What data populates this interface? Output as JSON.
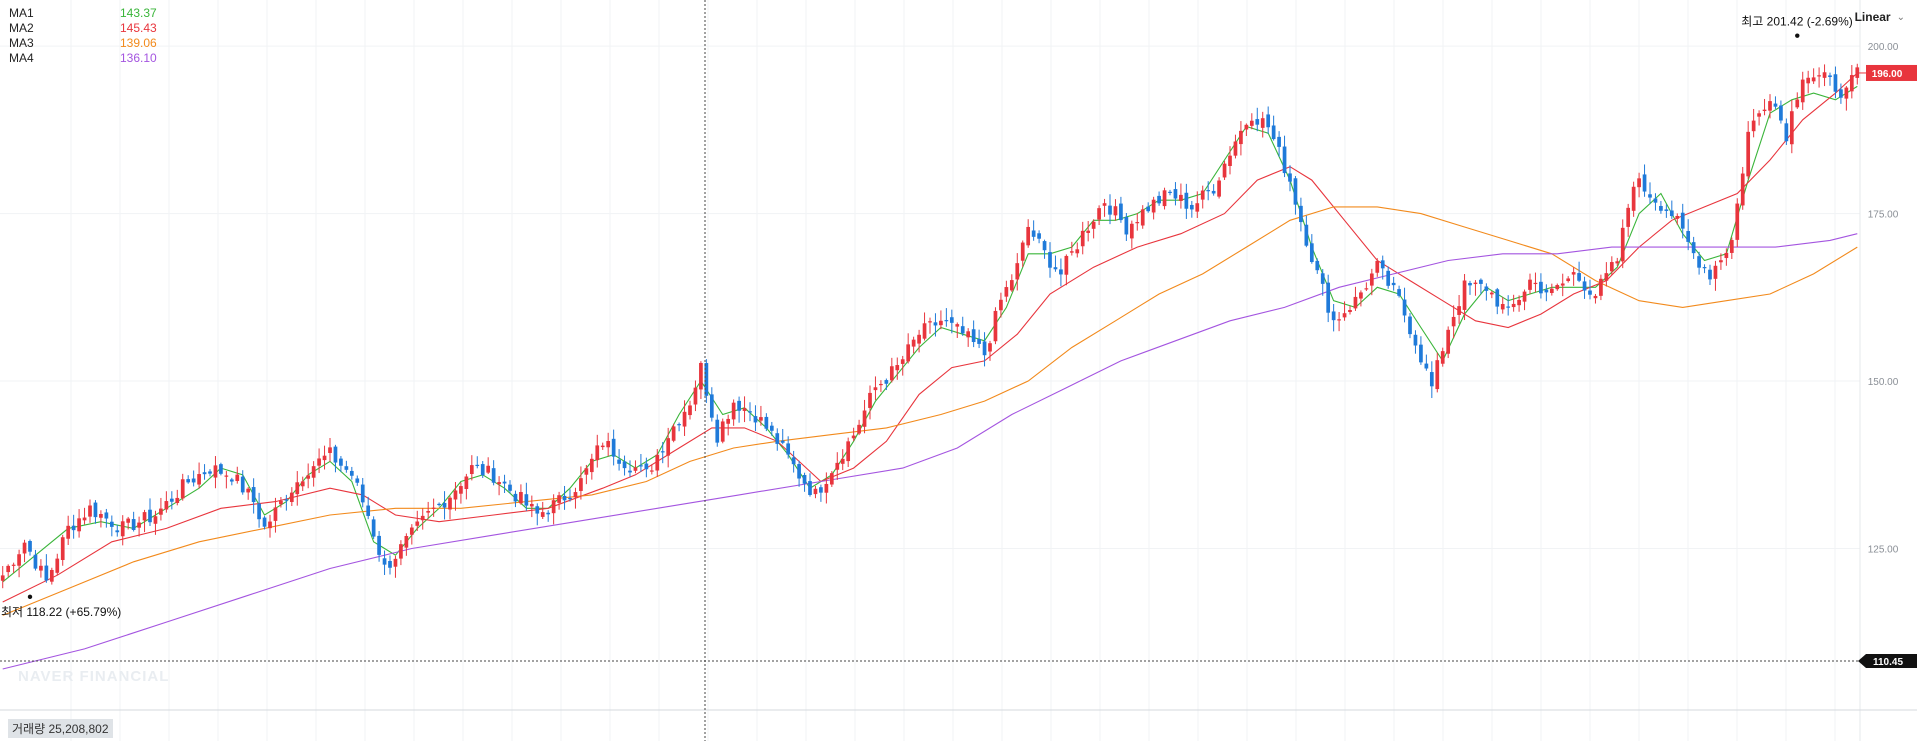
{
  "scale_mode": "Linear",
  "watermark": "NAVER FINANCIAL",
  "ma_legend": [
    {
      "name": "MA1",
      "value": "143.37",
      "color": "#3ab53a"
    },
    {
      "name": "MA2",
      "value": "145.43",
      "color": "#e8353d"
    },
    {
      "name": "MA3",
      "value": "139.06",
      "color": "#f28a1c"
    },
    {
      "name": "MA4",
      "value": "136.10",
      "color": "#a455e0"
    }
  ],
  "annotations": {
    "high_label": "최고 201.42 (-2.69%)",
    "low_label": "최저 118.22 (+65.79%)"
  },
  "current_price_label": "196.00",
  "crosshair_price_label": "110.45",
  "volume_text": "거래량 25,208,802",
  "colors": {
    "up": "#e8353d",
    "down": "#1f7ad9",
    "current_badge": "#e8353d",
    "crosshair_badge": "#111111"
  },
  "chart_data": {
    "type": "candlestick",
    "ylim": [
      107,
      206
    ],
    "y_ticks": [
      "200.00",
      "175.00",
      "150.00",
      "125.00"
    ],
    "grid": true,
    "high": 201.42,
    "low": 118.22,
    "close_anchors": [
      [
        0,
        121
      ],
      [
        4,
        126
      ],
      [
        8,
        120
      ],
      [
        12,
        128
      ],
      [
        16,
        131
      ],
      [
        22,
        128
      ],
      [
        28,
        130
      ],
      [
        34,
        135
      ],
      [
        38,
        137
      ],
      [
        42,
        136
      ],
      [
        46,
        132
      ],
      [
        48,
        128
      ],
      [
        52,
        133
      ],
      [
        56,
        137
      ],
      [
        60,
        139
      ],
      [
        64,
        136
      ],
      [
        67,
        130
      ],
      [
        70,
        122
      ],
      [
        74,
        126
      ],
      [
        78,
        130
      ],
      [
        82,
        133
      ],
      [
        86,
        137
      ],
      [
        90,
        136
      ],
      [
        94,
        133
      ],
      [
        98,
        130
      ],
      [
        102,
        132
      ],
      [
        106,
        135
      ],
      [
        110,
        141
      ],
      [
        114,
        138
      ],
      [
        118,
        136
      ],
      [
        122,
        142
      ],
      [
        126,
        147
      ],
      [
        128,
        152
      ],
      [
        131,
        142
      ],
      [
        134,
        147
      ],
      [
        138,
        145
      ],
      [
        142,
        141
      ],
      [
        146,
        136
      ],
      [
        149,
        133
      ],
      [
        152,
        137
      ],
      [
        156,
        142
      ],
      [
        160,
        149
      ],
      [
        164,
        152
      ],
      [
        168,
        157
      ],
      [
        172,
        159
      ],
      [
        176,
        157
      ],
      [
        180,
        154
      ],
      [
        183,
        162
      ],
      [
        186,
        167
      ],
      [
        188,
        173
      ],
      [
        191,
        169
      ],
      [
        194,
        166
      ],
      [
        198,
        172
      ],
      [
        202,
        177
      ],
      [
        206,
        173
      ],
      [
        210,
        176
      ],
      [
        214,
        178
      ],
      [
        218,
        176
      ],
      [
        222,
        179
      ],
      [
        226,
        186
      ],
      [
        229,
        190
      ],
      [
        232,
        188
      ],
      [
        236,
        180
      ],
      [
        238,
        174
      ],
      [
        241,
        166
      ],
      [
        244,
        159
      ],
      [
        248,
        162
      ],
      [
        252,
        167
      ],
      [
        256,
        162
      ],
      [
        259,
        156
      ],
      [
        262,
        149
      ],
      [
        265,
        158
      ],
      [
        268,
        164
      ],
      [
        272,
        164
      ],
      [
        276,
        160
      ],
      [
        280,
        165
      ],
      [
        284,
        163
      ],
      [
        288,
        166
      ],
      [
        292,
        163
      ],
      [
        296,
        168
      ],
      [
        299,
        180
      ],
      [
        302,
        178
      ],
      [
        306,
        175
      ],
      [
        310,
        169
      ],
      [
        313,
        166
      ],
      [
        317,
        171
      ],
      [
        320,
        187
      ],
      [
        324,
        193
      ],
      [
        327,
        187
      ],
      [
        330,
        196
      ],
      [
        334,
        195
      ],
      [
        338,
        193
      ],
      [
        340,
        196
      ]
    ],
    "moving_averages": [
      {
        "name": "MA1",
        "color": "#3ab53a",
        "width": 1.1,
        "points": [
          [
            0,
            120
          ],
          [
            6,
            124
          ],
          [
            12,
            128
          ],
          [
            18,
            129
          ],
          [
            24,
            128
          ],
          [
            30,
            131
          ],
          [
            36,
            134
          ],
          [
            40,
            137
          ],
          [
            44,
            136
          ],
          [
            48,
            130
          ],
          [
            52,
            132
          ],
          [
            56,
            136
          ],
          [
            60,
            138
          ],
          [
            64,
            135
          ],
          [
            68,
            126
          ],
          [
            72,
            124
          ],
          [
            76,
            128
          ],
          [
            80,
            131
          ],
          [
            84,
            135
          ],
          [
            88,
            136
          ],
          [
            92,
            134
          ],
          [
            96,
            131
          ],
          [
            100,
            131
          ],
          [
            104,
            134
          ],
          [
            108,
            138
          ],
          [
            112,
            139
          ],
          [
            116,
            137
          ],
          [
            120,
            139
          ],
          [
            124,
            145
          ],
          [
            128,
            150
          ],
          [
            132,
            145
          ],
          [
            136,
            146
          ],
          [
            140,
            143
          ],
          [
            144,
            139
          ],
          [
            148,
            134
          ],
          [
            152,
            136
          ],
          [
            156,
            141
          ],
          [
            160,
            147
          ],
          [
            164,
            151
          ],
          [
            168,
            155
          ],
          [
            172,
            158
          ],
          [
            176,
            157
          ],
          [
            180,
            156
          ],
          [
            184,
            161
          ],
          [
            188,
            169
          ],
          [
            192,
            169
          ],
          [
            196,
            170
          ],
          [
            200,
            174
          ],
          [
            204,
            174
          ],
          [
            208,
            175
          ],
          [
            212,
            177
          ],
          [
            216,
            177
          ],
          [
            220,
            178
          ],
          [
            224,
            183
          ],
          [
            228,
            188
          ],
          [
            232,
            187
          ],
          [
            236,
            180
          ],
          [
            240,
            170
          ],
          [
            244,
            162
          ],
          [
            248,
            161
          ],
          [
            252,
            164
          ],
          [
            256,
            163
          ],
          [
            260,
            158
          ],
          [
            264,
            153
          ],
          [
            268,
            160
          ],
          [
            272,
            164
          ],
          [
            276,
            162
          ],
          [
            280,
            163
          ],
          [
            284,
            164
          ],
          [
            288,
            164
          ],
          [
            292,
            164
          ],
          [
            296,
            167
          ],
          [
            300,
            175
          ],
          [
            304,
            178
          ],
          [
            308,
            172
          ],
          [
            312,
            168
          ],
          [
            316,
            169
          ],
          [
            320,
            180
          ],
          [
            324,
            190
          ],
          [
            328,
            192
          ],
          [
            332,
            193
          ],
          [
            336,
            192
          ],
          [
            340,
            194
          ]
        ]
      },
      {
        "name": "MA2",
        "color": "#e8353d",
        "width": 1.1,
        "points": [
          [
            0,
            117
          ],
          [
            10,
            121
          ],
          [
            20,
            126
          ],
          [
            30,
            128
          ],
          [
            40,
            131
          ],
          [
            50,
            132
          ],
          [
            60,
            134
          ],
          [
            66,
            133
          ],
          [
            72,
            130
          ],
          [
            80,
            129
          ],
          [
            90,
            130
          ],
          [
            100,
            131
          ],
          [
            110,
            134
          ],
          [
            116,
            136
          ],
          [
            124,
            140
          ],
          [
            130,
            143
          ],
          [
            136,
            143
          ],
          [
            142,
            141
          ],
          [
            146,
            138
          ],
          [
            150,
            135
          ],
          [
            156,
            137
          ],
          [
            162,
            141
          ],
          [
            168,
            148
          ],
          [
            174,
            152
          ],
          [
            180,
            153
          ],
          [
            186,
            157
          ],
          [
            192,
            163
          ],
          [
            200,
            167
          ],
          [
            208,
            170
          ],
          [
            216,
            172
          ],
          [
            224,
            175
          ],
          [
            230,
            180
          ],
          [
            236,
            182
          ],
          [
            240,
            180
          ],
          [
            246,
            174
          ],
          [
            252,
            168
          ],
          [
            258,
            165
          ],
          [
            264,
            162
          ],
          [
            270,
            159
          ],
          [
            276,
            158
          ],
          [
            282,
            160
          ],
          [
            288,
            163
          ],
          [
            294,
            165
          ],
          [
            300,
            170
          ],
          [
            306,
            174
          ],
          [
            312,
            176
          ],
          [
            318,
            178
          ],
          [
            324,
            183
          ],
          [
            330,
            189
          ],
          [
            336,
            193
          ],
          [
            340,
            196
          ]
        ]
      },
      {
        "name": "MA3",
        "color": "#f28a1c",
        "width": 1.1,
        "points": [
          [
            0,
            115
          ],
          [
            12,
            119
          ],
          [
            24,
            123
          ],
          [
            36,
            126
          ],
          [
            48,
            128
          ],
          [
            60,
            130
          ],
          [
            72,
            131
          ],
          [
            84,
            131
          ],
          [
            96,
            132
          ],
          [
            108,
            133
          ],
          [
            118,
            135
          ],
          [
            126,
            138
          ],
          [
            134,
            140
          ],
          [
            142,
            141
          ],
          [
            152,
            142
          ],
          [
            162,
            143
          ],
          [
            172,
            145
          ],
          [
            180,
            147
          ],
          [
            188,
            150
          ],
          [
            196,
            155
          ],
          [
            204,
            159
          ],
          [
            212,
            163
          ],
          [
            220,
            166
          ],
          [
            228,
            170
          ],
          [
            236,
            174
          ],
          [
            244,
            176
          ],
          [
            252,
            176
          ],
          [
            260,
            175
          ],
          [
            268,
            173
          ],
          [
            276,
            171
          ],
          [
            284,
            169
          ],
          [
            292,
            165
          ],
          [
            300,
            162
          ],
          [
            308,
            161
          ],
          [
            316,
            162
          ],
          [
            324,
            163
          ],
          [
            332,
            166
          ],
          [
            340,
            170
          ]
        ]
      },
      {
        "name": "MA4",
        "color": "#a455e0",
        "width": 1.1,
        "points": [
          [
            0,
            107
          ],
          [
            15,
            110
          ],
          [
            30,
            114
          ],
          [
            45,
            118
          ],
          [
            60,
            122
          ],
          [
            75,
            125
          ],
          [
            90,
            127
          ],
          [
            105,
            129
          ],
          [
            120,
            131
          ],
          [
            135,
            133
          ],
          [
            150,
            135
          ],
          [
            165,
            137
          ],
          [
            175,
            140
          ],
          [
            185,
            145
          ],
          [
            195,
            149
          ],
          [
            205,
            153
          ],
          [
            215,
            156
          ],
          [
            225,
            159
          ],
          [
            235,
            161
          ],
          [
            245,
            164
          ],
          [
            255,
            166
          ],
          [
            265,
            168
          ],
          [
            275,
            169
          ],
          [
            285,
            169
          ],
          [
            295,
            170
          ],
          [
            305,
            170
          ],
          [
            315,
            170
          ],
          [
            325,
            170
          ],
          [
            335,
            171
          ],
          [
            340,
            172
          ]
        ]
      }
    ]
  }
}
